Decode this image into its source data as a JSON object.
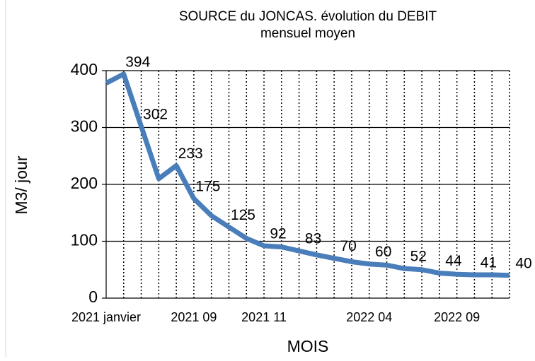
{
  "chart_data": {
    "type": "line",
    "title_lines": [
      "SOURCE du JONCAS. évolution du DEBIT",
      "mensuel moyen"
    ],
    "y_label": "M3/ jour",
    "x_label": "MOIS",
    "categories": [
      "2021 janvier",
      null,
      null,
      null,
      null,
      "2021 09",
      null,
      null,
      null,
      "2021 11",
      null,
      null,
      null,
      null,
      null,
      "2022 04",
      null,
      null,
      null,
      null,
      "2022 09",
      null,
      null,
      null
    ],
    "series": [
      {
        "name": "DEBIT",
        "color": "#4a7ebb",
        "values": [
          378,
          394,
          302,
          210,
          233,
          175,
          145,
          125,
          105,
          92,
          90,
          83,
          76,
          70,
          64,
          60,
          58,
          52,
          50,
          44,
          42,
          41,
          41,
          40
        ],
        "value_labels": [
          null,
          "394",
          "302",
          null,
          "233",
          "175",
          null,
          "125",
          null,
          "92",
          null,
          "83",
          null,
          "70",
          null,
          "60",
          null,
          "52",
          null,
          "44",
          null,
          "41",
          null,
          "40"
        ]
      }
    ],
    "ylim": [
      0,
      400
    ],
    "yticks": [
      0,
      100,
      200,
      300,
      400
    ],
    "grid": true
  }
}
